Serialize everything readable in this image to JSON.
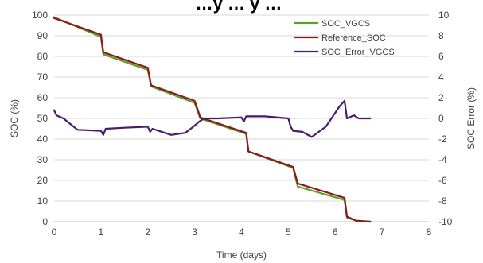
{
  "chart_data": {
    "type": "line",
    "title": "…y … y …",
    "xlabel": "Time (days)",
    "ylabel": "SOC (%)",
    "y2label": "SOC Error (%)",
    "xlim": [
      0,
      8
    ],
    "ylim": [
      0,
      100
    ],
    "y2lim": [
      -10,
      10
    ],
    "xticks": [
      0,
      1,
      2,
      3,
      4,
      5,
      6,
      7,
      8
    ],
    "yticks": [
      0,
      10,
      20,
      30,
      40,
      50,
      60,
      70,
      80,
      90,
      100
    ],
    "y2ticks": [
      -10,
      -8,
      -6,
      -4,
      -2,
      0,
      2,
      4,
      6,
      8,
      10
    ],
    "grid": "horizontal",
    "legend_position": "top-right",
    "series": [
      {
        "name": "SOC_VGCS",
        "axis": "left",
        "color": "#5aa02c",
        "x": [
          0,
          1,
          1.05,
          2,
          2.07,
          3,
          3.12,
          4.1,
          4.15,
          5.1,
          5.2,
          6.2,
          6.25,
          6.45,
          6.75
        ],
        "y": [
          99,
          89.5,
          81,
          73.5,
          65.5,
          57.5,
          50,
          42.5,
          34,
          26,
          17,
          10.5,
          2,
          0.5,
          0
        ]
      },
      {
        "name": "Reference_SOC",
        "axis": "left",
        "color": "#8b1a1a",
        "x": [
          0,
          1,
          1.05,
          2,
          2.07,
          3,
          3.12,
          4.1,
          4.15,
          5.1,
          5.2,
          6.2,
          6.25,
          6.45,
          6.75
        ],
        "y": [
          98.5,
          90.5,
          82,
          74.5,
          66,
          58.5,
          50.5,
          43,
          34,
          26.5,
          18.5,
          11.5,
          2.5,
          0.5,
          0
        ]
      },
      {
        "name": "SOC_Error_VGCS",
        "axis": "right",
        "color": "#4b1a6b",
        "x": [
          0,
          0.05,
          0.2,
          0.5,
          1,
          1.05,
          1.1,
          1.5,
          2,
          2.05,
          2.1,
          2.3,
          2.5,
          2.8,
          3,
          3.1,
          3.2,
          3.5,
          4,
          4.05,
          4.1,
          4.5,
          5,
          5.05,
          5.1,
          5.3,
          5.5,
          5.8,
          6.1,
          6.2,
          6.25,
          6.4,
          6.5,
          6.75
        ],
        "y": [
          0.8,
          0.3,
          0,
          -1.1,
          -1.2,
          -1.6,
          -1.0,
          -0.9,
          -0.8,
          -1.3,
          -1.0,
          -1.3,
          -1.6,
          -1.4,
          -0.7,
          -0.3,
          0,
          0,
          0.1,
          -0.3,
          0.2,
          0.2,
          0,
          -0.8,
          -1.2,
          -1.3,
          -1.8,
          -0.8,
          1.2,
          1.7,
          0,
          0.3,
          0,
          0
        ]
      }
    ]
  }
}
